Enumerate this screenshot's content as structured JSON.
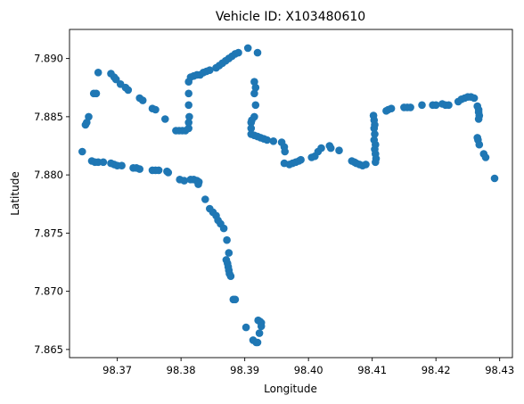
{
  "chart_data": {
    "type": "scatter",
    "title": "Vehicle ID: X103480610",
    "xlabel": "Longitude",
    "ylabel": "Latitude",
    "xlim": [
      98.3625,
      98.432
    ],
    "ylim": [
      7.8643,
      7.8925
    ],
    "x_ticks": [
      98.37,
      98.38,
      98.39,
      98.4,
      98.41,
      98.42,
      98.43
    ],
    "x_tick_labels": [
      "98.37",
      "98.38",
      "98.39",
      "98.40",
      "98.41",
      "98.42",
      "98.43"
    ],
    "y_ticks": [
      7.865,
      7.87,
      7.875,
      7.88,
      7.885,
      7.89
    ],
    "y_tick_labels": [
      "7.865",
      "7.870",
      "7.875",
      "7.880",
      "7.885",
      "7.890"
    ],
    "grid": false,
    "marker_color": "#1f77b4",
    "points": [
      [
        98.3645,
        7.882
      ],
      [
        98.366,
        7.8812
      ],
      [
        98.3665,
        7.8811
      ],
      [
        98.367,
        7.8811
      ],
      [
        98.3678,
        7.8811
      ],
      [
        98.369,
        7.881
      ],
      [
        98.3695,
        7.8809
      ],
      [
        98.37,
        7.8808
      ],
      [
        98.3707,
        7.8808
      ],
      [
        98.3725,
        7.8806
      ],
      [
        98.373,
        7.8806
      ],
      [
        98.3735,
        7.8805
      ],
      [
        98.3755,
        7.8804
      ],
      [
        98.376,
        7.8804
      ],
      [
        98.3765,
        7.8804
      ],
      [
        98.3778,
        7.8803
      ],
      [
        98.378,
        7.8802
      ],
      [
        98.3798,
        7.8796
      ],
      [
        98.3805,
        7.8795
      ],
      [
        98.3815,
        7.8796
      ],
      [
        98.382,
        7.8796
      ],
      [
        98.3825,
        7.8795
      ],
      [
        98.3828,
        7.8794
      ],
      [
        98.3827,
        7.8792
      ],
      [
        98.3838,
        7.8779
      ],
      [
        98.3845,
        7.8771
      ],
      [
        98.385,
        7.8768
      ],
      [
        98.3855,
        7.8765
      ],
      [
        98.3858,
        7.8761
      ],
      [
        98.3862,
        7.8758
      ],
      [
        98.3867,
        7.8754
      ],
      [
        98.3872,
        7.8744
      ],
      [
        98.3875,
        7.8733
      ],
      [
        98.3871,
        7.8727
      ],
      [
        98.3873,
        7.8724
      ],
      [
        98.3874,
        7.8721
      ],
      [
        98.3875,
        7.8718
      ],
      [
        98.3876,
        7.8715
      ],
      [
        98.3878,
        7.8713
      ],
      [
        98.3882,
        7.8693
      ],
      [
        98.3885,
        7.8693
      ],
      [
        98.3902,
        7.8669
      ],
      [
        98.3913,
        7.8658
      ],
      [
        98.3918,
        7.8656
      ],
      [
        98.392,
        7.8656
      ],
      [
        98.3921,
        7.8675
      ],
      [
        98.3924,
        7.8674
      ],
      [
        98.3926,
        7.8673
      ],
      [
        98.3926,
        7.867
      ],
      [
        98.3923,
        7.8664
      ],
      [
        98.365,
        7.8843
      ],
      [
        98.3652,
        7.8845
      ],
      [
        98.3655,
        7.885
      ],
      [
        98.3663,
        7.887
      ],
      [
        98.3667,
        7.887
      ],
      [
        98.367,
        7.8888
      ],
      [
        98.369,
        7.8887
      ],
      [
        98.3695,
        7.8884
      ],
      [
        98.3698,
        7.8882
      ],
      [
        98.3705,
        7.8878
      ],
      [
        98.3713,
        7.8875
      ],
      [
        98.3717,
        7.8873
      ],
      [
        98.3735,
        7.8866
      ],
      [
        98.374,
        7.8864
      ],
      [
        98.3755,
        7.8857
      ],
      [
        98.376,
        7.8856
      ],
      [
        98.3775,
        7.8848
      ],
      [
        98.3792,
        7.8838
      ],
      [
        98.3797,
        7.8838
      ],
      [
        98.3802,
        7.8838
      ],
      [
        98.3807,
        7.8838
      ],
      [
        98.3812,
        7.884
      ],
      [
        98.3812,
        7.8845
      ],
      [
        98.3813,
        7.885
      ],
      [
        98.3812,
        7.886
      ],
      [
        98.3812,
        7.887
      ],
      [
        98.3812,
        7.888
      ],
      [
        98.3815,
        7.8884
      ],
      [
        98.382,
        7.8885
      ],
      [
        98.3825,
        7.8886
      ],
      [
        98.383,
        7.8886
      ],
      [
        98.3835,
        7.8888
      ],
      [
        98.384,
        7.8889
      ],
      [
        98.3845,
        7.889
      ],
      [
        98.3855,
        7.8892
      ],
      [
        98.386,
        7.8894
      ],
      [
        98.3865,
        7.8896
      ],
      [
        98.387,
        7.8898
      ],
      [
        98.3875,
        7.89
      ],
      [
        98.388,
        7.8902
      ],
      [
        98.3885,
        7.8904
      ],
      [
        98.389,
        7.8905
      ],
      [
        98.3905,
        7.8909
      ],
      [
        98.392,
        7.8905
      ],
      [
        98.3915,
        7.888
      ],
      [
        98.3917,
        7.8875
      ],
      [
        98.3915,
        7.887
      ],
      [
        98.3917,
        7.886
      ],
      [
        98.3915,
        7.885
      ],
      [
        98.3911,
        7.8847
      ],
      [
        98.391,
        7.8845
      ],
      [
        98.391,
        7.884
      ],
      [
        98.391,
        7.8835
      ],
      [
        98.3915,
        7.8834
      ],
      [
        98.392,
        7.8833
      ],
      [
        98.3925,
        7.8832
      ],
      [
        98.393,
        7.8831
      ],
      [
        98.3935,
        7.883
      ],
      [
        98.3945,
        7.8829
      ],
      [
        98.3958,
        7.8828
      ],
      [
        98.3962,
        7.8824
      ],
      [
        98.3963,
        7.882
      ],
      [
        98.3962,
        7.881
      ],
      [
        98.397,
        7.8809
      ],
      [
        98.3975,
        7.881
      ],
      [
        98.398,
        7.8811
      ],
      [
        98.3985,
        7.8812
      ],
      [
        98.3988,
        7.8813
      ],
      [
        98.4005,
        7.8815
      ],
      [
        98.401,
        7.8816
      ],
      [
        98.4015,
        7.882
      ],
      [
        98.402,
        7.8823
      ],
      [
        98.4033,
        7.8825
      ],
      [
        98.4035,
        7.8823
      ],
      [
        98.4048,
        7.8821
      ],
      [
        98.4068,
        7.8812
      ],
      [
        98.4072,
        7.8811
      ],
      [
        98.4075,
        7.881
      ],
      [
        98.408,
        7.8809
      ],
      [
        98.4085,
        7.8808
      ],
      [
        98.409,
        7.8809
      ],
      [
        98.4102,
        7.8851
      ],
      [
        98.4103,
        7.8847
      ],
      [
        98.4104,
        7.8843
      ],
      [
        98.4103,
        7.884
      ],
      [
        98.4104,
        7.8835
      ],
      [
        98.4103,
        7.883
      ],
      [
        98.4105,
        7.8826
      ],
      [
        98.4104,
        7.8822
      ],
      [
        98.4105,
        7.8818
      ],
      [
        98.4106,
        7.8814
      ],
      [
        98.4105,
        7.8811
      ],
      [
        98.4122,
        7.8855
      ],
      [
        98.4125,
        7.8856
      ],
      [
        98.413,
        7.8857
      ],
      [
        98.415,
        7.8858
      ],
      [
        98.4155,
        7.8858
      ],
      [
        98.416,
        7.8858
      ],
      [
        98.4178,
        7.886
      ],
      [
        98.4195,
        7.886
      ],
      [
        98.42,
        7.886
      ],
      [
        98.421,
        7.8861
      ],
      [
        98.4215,
        7.886
      ],
      [
        98.422,
        7.886
      ],
      [
        98.4235,
        7.8863
      ],
      [
        98.424,
        7.8865
      ],
      [
        98.4245,
        7.8866
      ],
      [
        98.425,
        7.8867
      ],
      [
        98.4255,
        7.8867
      ],
      [
        98.426,
        7.8866
      ],
      [
        98.4265,
        7.8859
      ],
      [
        98.4267,
        7.8856
      ],
      [
        98.4267,
        7.8854
      ],
      [
        98.4268,
        7.8851
      ],
      [
        98.4267,
        7.8848
      ],
      [
        98.4265,
        7.8832
      ],
      [
        98.4266,
        7.883
      ],
      [
        98.4268,
        7.8826
      ],
      [
        98.4275,
        7.8818
      ],
      [
        98.4278,
        7.8815
      ],
      [
        98.4292,
        7.8797
      ]
    ]
  }
}
